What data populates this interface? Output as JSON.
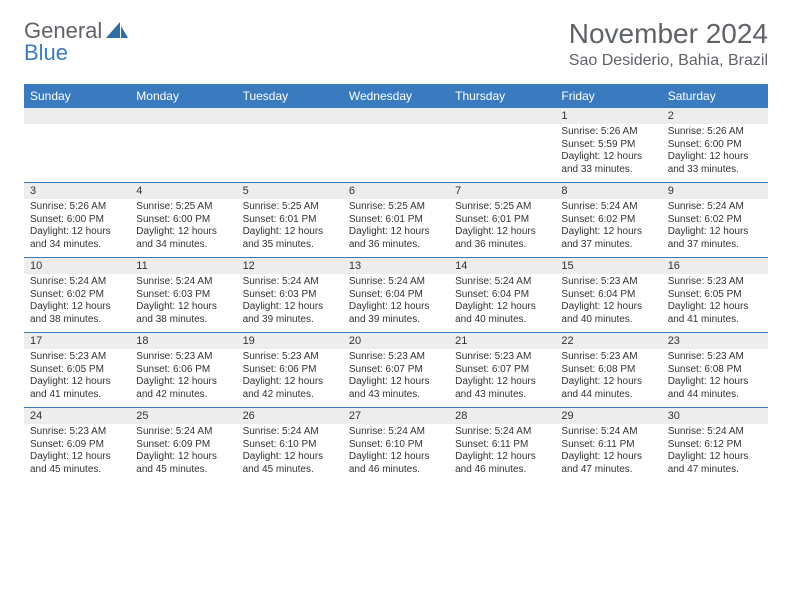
{
  "logo": {
    "text1": "General",
    "text2": "Blue"
  },
  "title": "November 2024",
  "location": "Sao Desiderio, Bahia, Brazil",
  "style": {
    "header_bg": "#3a7bbf",
    "header_fg": "#ffffff",
    "daynum_bg": "#ededed",
    "row_divider": "#3a7bbf",
    "body_fg": "#333333",
    "title_fg": "#5f6368",
    "font_size_title": 28,
    "font_size_location": 16,
    "font_size_weekday": 12,
    "font_size_daynum": 11,
    "font_size_body": 10
  },
  "weekdays": [
    "Sunday",
    "Monday",
    "Tuesday",
    "Wednesday",
    "Thursday",
    "Friday",
    "Saturday"
  ],
  "weeks": [
    [
      null,
      null,
      null,
      null,
      null,
      {
        "n": "1",
        "sr": "Sunrise: 5:26 AM",
        "ss": "Sunset: 5:59 PM",
        "d1": "Daylight: 12 hours",
        "d2": "and 33 minutes."
      },
      {
        "n": "2",
        "sr": "Sunrise: 5:26 AM",
        "ss": "Sunset: 6:00 PM",
        "d1": "Daylight: 12 hours",
        "d2": "and 33 minutes."
      }
    ],
    [
      {
        "n": "3",
        "sr": "Sunrise: 5:26 AM",
        "ss": "Sunset: 6:00 PM",
        "d1": "Daylight: 12 hours",
        "d2": "and 34 minutes."
      },
      {
        "n": "4",
        "sr": "Sunrise: 5:25 AM",
        "ss": "Sunset: 6:00 PM",
        "d1": "Daylight: 12 hours",
        "d2": "and 34 minutes."
      },
      {
        "n": "5",
        "sr": "Sunrise: 5:25 AM",
        "ss": "Sunset: 6:01 PM",
        "d1": "Daylight: 12 hours",
        "d2": "and 35 minutes."
      },
      {
        "n": "6",
        "sr": "Sunrise: 5:25 AM",
        "ss": "Sunset: 6:01 PM",
        "d1": "Daylight: 12 hours",
        "d2": "and 36 minutes."
      },
      {
        "n": "7",
        "sr": "Sunrise: 5:25 AM",
        "ss": "Sunset: 6:01 PM",
        "d1": "Daylight: 12 hours",
        "d2": "and 36 minutes."
      },
      {
        "n": "8",
        "sr": "Sunrise: 5:24 AM",
        "ss": "Sunset: 6:02 PM",
        "d1": "Daylight: 12 hours",
        "d2": "and 37 minutes."
      },
      {
        "n": "9",
        "sr": "Sunrise: 5:24 AM",
        "ss": "Sunset: 6:02 PM",
        "d1": "Daylight: 12 hours",
        "d2": "and 37 minutes."
      }
    ],
    [
      {
        "n": "10",
        "sr": "Sunrise: 5:24 AM",
        "ss": "Sunset: 6:02 PM",
        "d1": "Daylight: 12 hours",
        "d2": "and 38 minutes."
      },
      {
        "n": "11",
        "sr": "Sunrise: 5:24 AM",
        "ss": "Sunset: 6:03 PM",
        "d1": "Daylight: 12 hours",
        "d2": "and 38 minutes."
      },
      {
        "n": "12",
        "sr": "Sunrise: 5:24 AM",
        "ss": "Sunset: 6:03 PM",
        "d1": "Daylight: 12 hours",
        "d2": "and 39 minutes."
      },
      {
        "n": "13",
        "sr": "Sunrise: 5:24 AM",
        "ss": "Sunset: 6:04 PM",
        "d1": "Daylight: 12 hours",
        "d2": "and 39 minutes."
      },
      {
        "n": "14",
        "sr": "Sunrise: 5:24 AM",
        "ss": "Sunset: 6:04 PM",
        "d1": "Daylight: 12 hours",
        "d2": "and 40 minutes."
      },
      {
        "n": "15",
        "sr": "Sunrise: 5:23 AM",
        "ss": "Sunset: 6:04 PM",
        "d1": "Daylight: 12 hours",
        "d2": "and 40 minutes."
      },
      {
        "n": "16",
        "sr": "Sunrise: 5:23 AM",
        "ss": "Sunset: 6:05 PM",
        "d1": "Daylight: 12 hours",
        "d2": "and 41 minutes."
      }
    ],
    [
      {
        "n": "17",
        "sr": "Sunrise: 5:23 AM",
        "ss": "Sunset: 6:05 PM",
        "d1": "Daylight: 12 hours",
        "d2": "and 41 minutes."
      },
      {
        "n": "18",
        "sr": "Sunrise: 5:23 AM",
        "ss": "Sunset: 6:06 PM",
        "d1": "Daylight: 12 hours",
        "d2": "and 42 minutes."
      },
      {
        "n": "19",
        "sr": "Sunrise: 5:23 AM",
        "ss": "Sunset: 6:06 PM",
        "d1": "Daylight: 12 hours",
        "d2": "and 42 minutes."
      },
      {
        "n": "20",
        "sr": "Sunrise: 5:23 AM",
        "ss": "Sunset: 6:07 PM",
        "d1": "Daylight: 12 hours",
        "d2": "and 43 minutes."
      },
      {
        "n": "21",
        "sr": "Sunrise: 5:23 AM",
        "ss": "Sunset: 6:07 PM",
        "d1": "Daylight: 12 hours",
        "d2": "and 43 minutes."
      },
      {
        "n": "22",
        "sr": "Sunrise: 5:23 AM",
        "ss": "Sunset: 6:08 PM",
        "d1": "Daylight: 12 hours",
        "d2": "and 44 minutes."
      },
      {
        "n": "23",
        "sr": "Sunrise: 5:23 AM",
        "ss": "Sunset: 6:08 PM",
        "d1": "Daylight: 12 hours",
        "d2": "and 44 minutes."
      }
    ],
    [
      {
        "n": "24",
        "sr": "Sunrise: 5:23 AM",
        "ss": "Sunset: 6:09 PM",
        "d1": "Daylight: 12 hours",
        "d2": "and 45 minutes."
      },
      {
        "n": "25",
        "sr": "Sunrise: 5:24 AM",
        "ss": "Sunset: 6:09 PM",
        "d1": "Daylight: 12 hours",
        "d2": "and 45 minutes."
      },
      {
        "n": "26",
        "sr": "Sunrise: 5:24 AM",
        "ss": "Sunset: 6:10 PM",
        "d1": "Daylight: 12 hours",
        "d2": "and 45 minutes."
      },
      {
        "n": "27",
        "sr": "Sunrise: 5:24 AM",
        "ss": "Sunset: 6:10 PM",
        "d1": "Daylight: 12 hours",
        "d2": "and 46 minutes."
      },
      {
        "n": "28",
        "sr": "Sunrise: 5:24 AM",
        "ss": "Sunset: 6:11 PM",
        "d1": "Daylight: 12 hours",
        "d2": "and 46 minutes."
      },
      {
        "n": "29",
        "sr": "Sunrise: 5:24 AM",
        "ss": "Sunset: 6:11 PM",
        "d1": "Daylight: 12 hours",
        "d2": "and 47 minutes."
      },
      {
        "n": "30",
        "sr": "Sunrise: 5:24 AM",
        "ss": "Sunset: 6:12 PM",
        "d1": "Daylight: 12 hours",
        "d2": "and 47 minutes."
      }
    ]
  ]
}
